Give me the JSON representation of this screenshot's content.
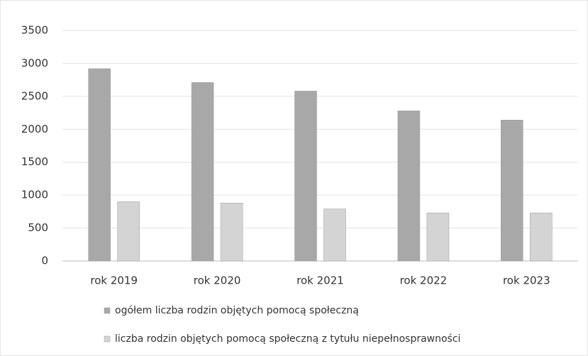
{
  "chart_data": {
    "type": "bar",
    "categories": [
      "rok 2019",
      "rok 2020",
      "rok 2021",
      "rok 2022",
      "rok 2023"
    ],
    "series": [
      {
        "name": "ogółem liczba rodzin objętych pomocą społeczną",
        "color": "#a8a8a8",
        "values": [
          2920,
          2710,
          2580,
          2280,
          2140
        ]
      },
      {
        "name": "liczba rodzin objętych pomocą społeczną z tytułu niepełnosprawności",
        "color": "#d4d4d4",
        "values": [
          900,
          880,
          790,
          730,
          730
        ]
      }
    ],
    "ylim": [
      0,
      3500
    ],
    "yticks": [
      0,
      500,
      1000,
      1500,
      2000,
      2500,
      3000,
      3500
    ],
    "grid": true,
    "legend": "bottom"
  }
}
